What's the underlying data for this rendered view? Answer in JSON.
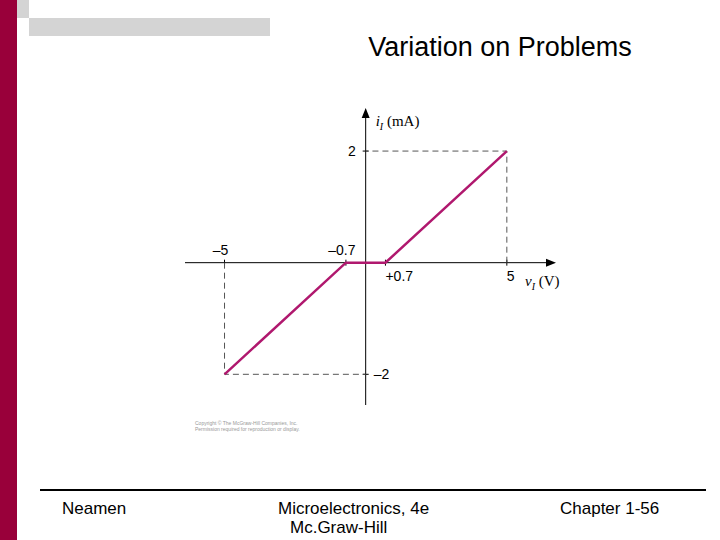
{
  "slide": {
    "title": "Variation on Problems",
    "footer": {
      "author": "Neamen",
      "publisher_lines": [
        "Microelectronics, 4e",
        "Mc.Graw-Hill"
      ],
      "page": "Chapter 1-56"
    },
    "copyright_lines": [
      "Copyright © The McGraw-Hill Companies, Inc.",
      "Permission required for reproduction or display."
    ]
  },
  "chart_data": {
    "type": "line",
    "x_label": "vI (V)",
    "y_label": "iI (mA)",
    "x": [
      -5,
      -0.7,
      0.7,
      5
    ],
    "values": [
      -2,
      0,
      0,
      2
    ],
    "color": "#b0186e",
    "xlim": [
      -6.4,
      6.6
    ],
    "ylim": [
      -2.55,
      2.7
    ],
    "xticks": [
      {
        "value": -5,
        "label": "–5"
      },
      {
        "value": -0.7,
        "label": "–0.7"
      },
      {
        "value": 0.7,
        "label": "+0.7"
      },
      5
    ],
    "yticks": [
      2,
      {
        "value": -2,
        "label": "–2"
      }
    ],
    "grid": false
  }
}
